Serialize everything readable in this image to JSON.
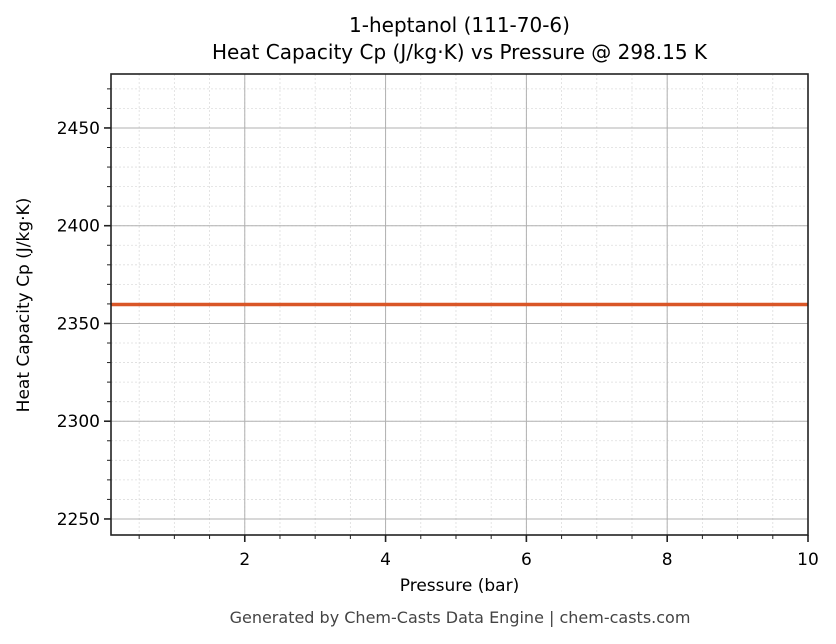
{
  "chart_data": {
    "type": "line",
    "title": "1-heptanol (111-70-6)",
    "subtitle": "Heat Capacity Cp (J/kg·K) vs Pressure @ 298.15 K",
    "xlabel": "Pressure (bar)",
    "ylabel": "Heat Capacity Cp (J/kg·K)",
    "xlim": [
      0.1,
      10
    ],
    "ylim": [
      2241.8,
      2477.6
    ],
    "x_ticks": [
      2,
      4,
      6,
      8,
      10
    ],
    "x_tick_labels": [
      "2",
      "4",
      "6",
      "8",
      "10"
    ],
    "x_minor_step": 0.5,
    "y_ticks": [
      2250,
      2300,
      2350,
      2400,
      2450
    ],
    "y_tick_labels": [
      "2250",
      "2300",
      "2350",
      "2400",
      "2450"
    ],
    "y_minor_step": 10,
    "grid": true,
    "legend": null,
    "series": [
      {
        "name": "Cp",
        "color": "#d95627",
        "x": [
          0.1,
          1,
          2,
          3,
          4,
          5,
          6,
          7,
          8,
          9,
          10
        ],
        "values": [
          2359.7,
          2359.7,
          2359.7,
          2359.7,
          2359.7,
          2359.7,
          2359.7,
          2359.7,
          2359.7,
          2359.7,
          2359.7
        ]
      }
    ]
  },
  "footer": "Generated by Chem-Casts Data Engine | chem-casts.com"
}
